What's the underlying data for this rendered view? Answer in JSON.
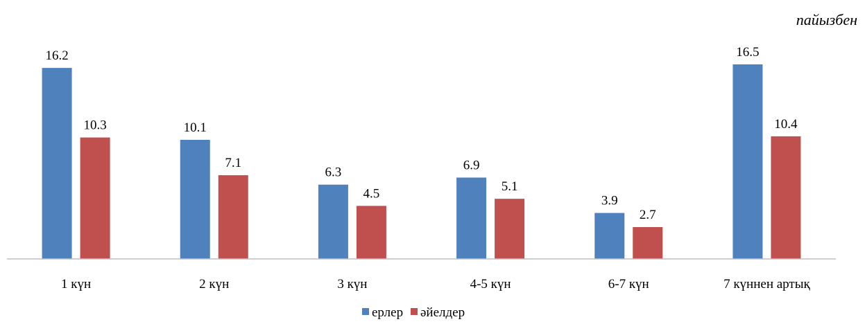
{
  "chart_data": {
    "type": "bar",
    "unit_label": "пайызбен",
    "categories": [
      "1 күн",
      "2 күн",
      "3 күн",
      "4-5 күн",
      "6-7 күн",
      "7 күннен артық"
    ],
    "series": [
      {
        "name": "ерлер",
        "values": [
          16.2,
          10.1,
          6.3,
          6.9,
          3.9,
          16.5
        ],
        "color": "#4F81BD"
      },
      {
        "name": "әйелдер",
        "values": [
          10.3,
          7.1,
          4.5,
          5.1,
          2.7,
          10.4
        ],
        "color": "#C0504D"
      }
    ],
    "ylim": [
      0,
      16.5
    ],
    "grid": false,
    "legend_position": "bottom-center",
    "axis_color": "#BFBFBF"
  }
}
